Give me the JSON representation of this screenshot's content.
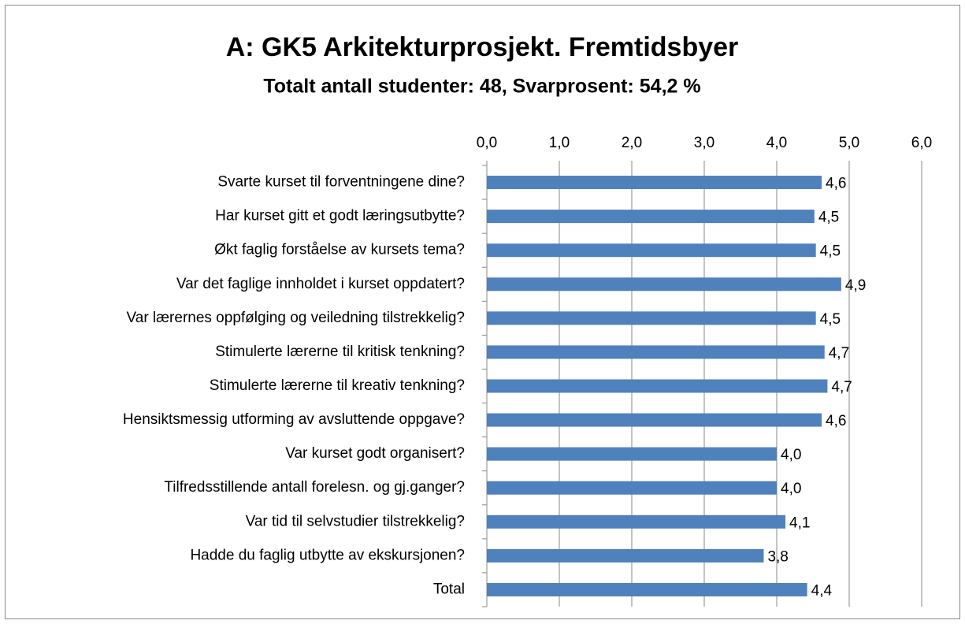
{
  "chart_data": {
    "type": "bar",
    "orientation": "horizontal",
    "title": "A: GK5 Arkitekturprosjekt. Fremtidsbyer",
    "subtitle": "Totalt antall studenter: 48, Svarprosent: 54,2 %",
    "categories": [
      "Svarte kurset til forventningene dine?",
      "Har kurset gitt et godt læringsutbytte?",
      "Økt faglig forståelse av kursets tema?",
      "Var det faglige innholdet i kurset oppdatert?",
      "Var lærernes oppfølging og veiledning tilstrekkelig?",
      "Stimulerte lærerne til kritisk tenkning?",
      "Stimulerte lærerne til kreativ tenkning?",
      "Hensiktsmessig utforming av avsluttende oppgave?",
      "Var kurset godt organisert?",
      "Tilfredsstillende antall forelesn. og gj.ganger?",
      "Var tid til selvstudier tilstrekkelig?",
      "Hadde du faglig utbytte av ekskursjonen?",
      "Total"
    ],
    "values": [
      4.62,
      4.52,
      4.54,
      4.89,
      4.54,
      4.66,
      4.7,
      4.62,
      4.0,
      4.0,
      4.12,
      3.82,
      4.42
    ],
    "value_labels": [
      "4,6",
      "4,5",
      "4,5",
      "4,9",
      "4,5",
      "4,7",
      "4,7",
      "4,6",
      "4,0",
      "4,0",
      "4,1",
      "3,8",
      "4,4"
    ],
    "color": "#4f81bd",
    "xlim": [
      0,
      6
    ],
    "xticks": [
      {
        "value": 0,
        "label": "0,0"
      },
      {
        "value": 1,
        "label": "1,0"
      },
      {
        "value": 2,
        "label": "2,0"
      },
      {
        "value": 3,
        "label": "3,0"
      },
      {
        "value": 4,
        "label": "4,0"
      },
      {
        "value": 5,
        "label": "5,0"
      },
      {
        "value": 6,
        "label": "6,0"
      }
    ],
    "grid": true
  }
}
